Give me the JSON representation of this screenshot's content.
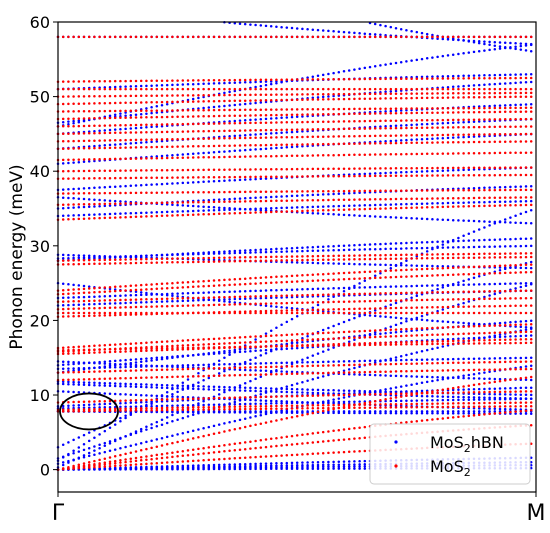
{
  "chart_data": {
    "type": "scatter",
    "title": "",
    "xlabel": "",
    "ylabel": "Phonon energy (meV)",
    "xticks": [
      "Γ",
      "M"
    ],
    "ylim": [
      -3,
      60
    ],
    "yticks": [
      0,
      10,
      20,
      30,
      40,
      50,
      60
    ],
    "grid": false,
    "legend_position": "lower-right",
    "series": [
      {
        "name": "MoS2hBN",
        "label_main": "MoS",
        "label_sub": "2",
        "label_tail": "hBN",
        "color": "#0000ff",
        "branches": [
          [
            0,
            0.2
          ],
          [
            0,
            0.6
          ],
          [
            0,
            1.0
          ],
          [
            0,
            1.6
          ],
          [
            7.8,
            7.8
          ],
          [
            7.8,
            7.5
          ],
          [
            8.2,
            9.5
          ],
          [
            8.5,
            11
          ],
          [
            10.5,
            8
          ],
          [
            11.5,
            9.5
          ],
          [
            11.8,
            10
          ],
          [
            13,
            20
          ],
          [
            13.5,
            15
          ],
          [
            14,
            18
          ],
          [
            14.5,
            12
          ],
          [
            0.8,
            14
          ],
          [
            0.3,
            25
          ],
          [
            1.5,
            19
          ],
          [
            3,
            28
          ],
          [
            1.2,
            35
          ],
          [
            22,
            24
          ],
          [
            23,
            25
          ],
          [
            25,
            19
          ],
          [
            28,
            31
          ],
          [
            28.3,
            30
          ],
          [
            28.8,
            27
          ],
          [
            34,
            36
          ],
          [
            35,
            38
          ],
          [
            36.5,
            33
          ],
          [
            37.5,
            40.5
          ],
          [
            41,
            45
          ],
          [
            43,
            47
          ],
          [
            45,
            49
          ],
          [
            46.5,
            52
          ],
          [
            46,
            57
          ],
          [
            51,
            53
          ],
          [
            58,
            58
          ],
          [
            62,
            57
          ],
          [
            70,
            56
          ]
        ]
      },
      {
        "name": "MoS2",
        "label_main": "MoS",
        "label_sub": "2",
        "label_tail": "",
        "color": "#ff0000",
        "branches": [
          [
            0,
            3.5
          ],
          [
            0,
            6
          ],
          [
            0,
            8
          ],
          [
            0,
            12.5
          ],
          [
            7.8,
            8.5
          ],
          [
            8,
            9
          ],
          [
            9,
            10.5
          ],
          [
            12,
            13.5
          ],
          [
            13,
            14.5
          ],
          [
            15.5,
            17.5
          ],
          [
            15.8,
            18.5
          ],
          [
            16,
            17
          ],
          [
            16.3,
            19.5
          ],
          [
            20.5,
            22
          ],
          [
            21,
            21
          ],
          [
            21.5,
            23
          ],
          [
            22.5,
            24
          ],
          [
            23.5,
            26.5
          ],
          [
            24,
            27.5
          ],
          [
            27.5,
            28.5
          ],
          [
            28,
            29
          ],
          [
            33.5,
            35.5
          ],
          [
            35.5,
            36.5
          ],
          [
            37,
            37.5
          ],
          [
            39,
            39.5
          ],
          [
            40,
            40.5
          ],
          [
            41.5,
            42.5
          ],
          [
            43,
            44
          ],
          [
            44,
            45
          ],
          [
            45,
            46
          ],
          [
            46,
            47
          ],
          [
            47,
            48
          ],
          [
            48,
            48.5
          ],
          [
            49,
            50
          ],
          [
            50,
            50.5
          ],
          [
            51,
            51
          ],
          [
            52,
            52.5
          ],
          [
            58,
            58
          ]
        ]
      }
    ]
  },
  "annotation": {
    "shape": "ellipse",
    "center_y": 7.8,
    "color": "#000000"
  }
}
